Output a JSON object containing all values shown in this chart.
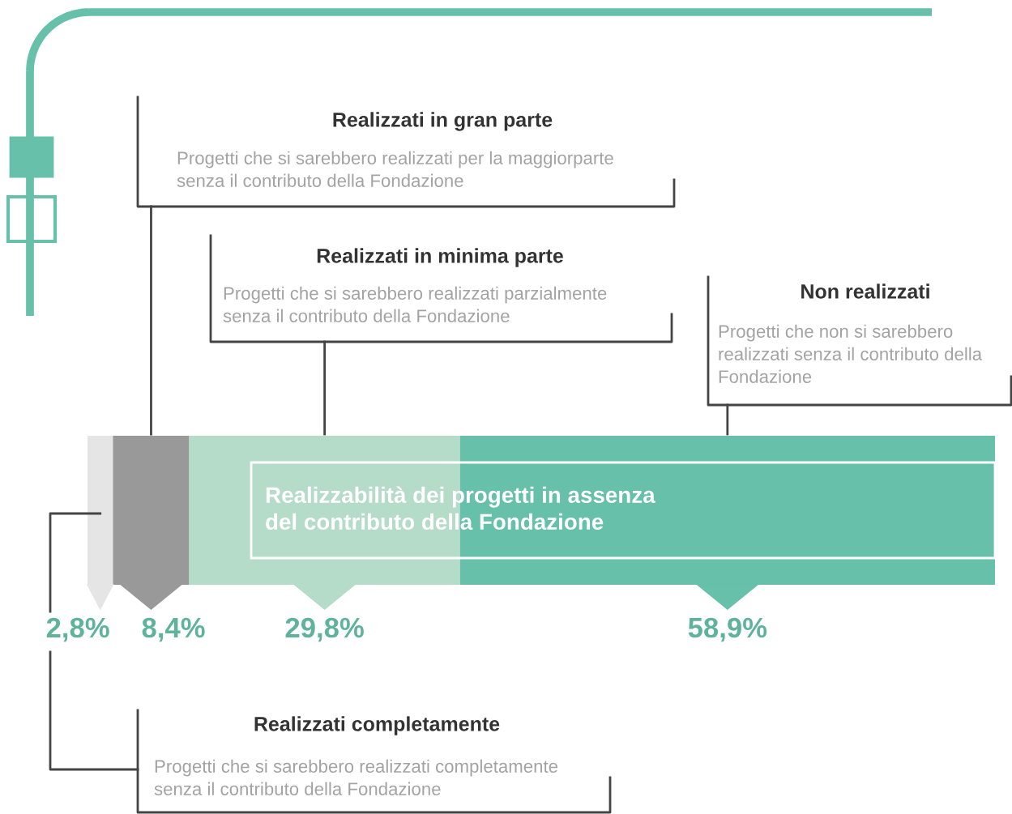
{
  "chart_data": {
    "type": "bar",
    "orientation": "horizontal",
    "stacked": true,
    "title": "Realizzabilità dei progetti in assenza\ndel contributo della Fondazione",
    "categories": [
      null
    ],
    "series": [
      {
        "color": "#e5e5e5",
        "values": [
          2.8
        ],
        "value_labels": [
          "2,8%"
        ]
      },
      {
        "color": "#999999",
        "values": [
          8.4
        ],
        "value_labels": [
          "8,4%"
        ]
      },
      {
        "color": "#b5dcc9",
        "values": [
          29.8
        ],
        "value_labels": [
          "29,8%"
        ]
      },
      {
        "color": "#66c0aa",
        "values": [
          58.9
        ],
        "value_labels": [
          "58,9%"
        ]
      }
    ],
    "annotations": [
      "Realizzati completamente",
      "Realizzati in gran parte",
      "Realizzati in minima parte",
      "Non realizzati",
      "Progetti che si sarebbero realizzati completamente\nsenza il contributo della Fondazione",
      "Progetti che si sarebbero realizzati per la maggiorparte\nsenza il contributo della Fondazione",
      "Progetti che si sarebbero realizzati parzialmente\nsenza il contributo della Fondazione",
      "Progetti che non si sarebbero\nrealizzati senza il contributo della\nFondazione"
    ]
  }
}
